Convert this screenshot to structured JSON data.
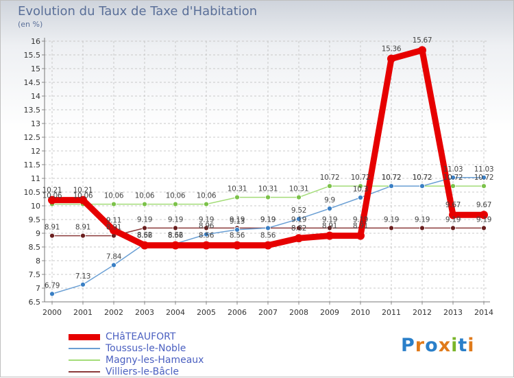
{
  "title": "Evolution du Taux de Taxe d'Habitation",
  "subtitle": "(en %)",
  "logo": {
    "text": "Proxiti",
    "letter_colors": [
      "#2a7fc9",
      "#e07a1a",
      "#2a7fc9",
      "#e07a1a",
      "#7ab52a",
      "#2a7fc9",
      "#e07a1a"
    ]
  },
  "chart_data": {
    "type": "line",
    "categories": [
      "2000",
      "2001",
      "2002",
      "2003",
      "2004",
      "2005",
      "2006",
      "2007",
      "2008",
      "2009",
      "2010",
      "2011",
      "2012",
      "2013",
      "2014"
    ],
    "ylim": [
      6.5,
      16
    ],
    "yticks": [
      "6.5",
      "7",
      "7.5",
      "8",
      "8.5",
      "9",
      "9.5",
      "10",
      "10.5",
      "11",
      "11.5",
      "12",
      "12.5",
      "13",
      "13.5",
      "14",
      "14.5",
      "15",
      "15.5",
      "16"
    ],
    "grid": true,
    "legend_position": "bottom-left",
    "series": [
      {
        "name": "CHâTEAUFORT",
        "color": "#e60000",
        "width": 9,
        "marker": "#e60000",
        "marker_r": 6,
        "label_dy": -11,
        "values": [
          10.21,
          10.21,
          9.11,
          8.56,
          8.56,
          8.56,
          8.56,
          8.56,
          8.82,
          8.91,
          8.91,
          15.36,
          15.67,
          9.67,
          9.67
        ],
        "labels": [
          "10.21",
          "10.21",
          "9.11",
          "8.56",
          "8.56",
          "8.56",
          "8.56",
          "8.56",
          "8.82",
          "8.91",
          "8.91",
          "15.36",
          "15.67",
          "9.67",
          "9.67"
        ]
      },
      {
        "name": "Toussus-le-Noble",
        "color": "#6a9fd4",
        "width": 1.5,
        "marker": "#3a7fc4",
        "marker_r": 3.5,
        "label_dy": -9,
        "values": [
          6.79,
          7.13,
          7.84,
          8.62,
          8.62,
          8.96,
          9.13,
          9.19,
          9.52,
          9.9,
          10.3,
          10.72,
          10.72,
          11.03,
          11.03
        ],
        "labels": [
          "6.79",
          "7.13",
          "7.84",
          "8.62",
          "8.62",
          "8.96",
          "9.13",
          "9.19",
          "9.52",
          "9.9",
          "10.3",
          "10.72",
          "10.72",
          "11.03",
          "11.03"
        ]
      },
      {
        "name": "Magny-les-Hameaux",
        "color": "#a3dc78",
        "width": 1.5,
        "marker": "#7cc24a",
        "marker_r": 3.5,
        "label_dy": -9,
        "values": [
          10.06,
          10.06,
          10.06,
          10.06,
          10.06,
          10.06,
          10.31,
          10.31,
          10.31,
          10.72,
          10.72,
          10.72,
          10.72,
          10.72,
          10.72
        ],
        "labels": [
          "10.06",
          "10.06",
          "10.06",
          "10.06",
          "10.06",
          "10.06",
          "10.31",
          "10.31",
          "10.31",
          "10.72",
          "10.72",
          "10.72",
          "10.72",
          "10.72",
          "10.72"
        ]
      },
      {
        "name": "Villiers-le-Bâcle",
        "color": "#8a3a3a",
        "width": 1.5,
        "marker": "#6a1f1f",
        "marker_r": 3.5,
        "label_dy": -9,
        "values": [
          8.91,
          8.91,
          8.91,
          9.19,
          9.19,
          9.19,
          9.19,
          9.19,
          9.19,
          9.19,
          9.19,
          9.19,
          9.19,
          9.19,
          9.19
        ],
        "labels": [
          "8.91",
          "8.91",
          "8.91",
          "9.19",
          "9.19",
          "9.19",
          "9.19",
          "9.19",
          "9.19",
          "9.19",
          "9.19",
          "9.19",
          "9.19",
          "9.19",
          "9.19"
        ]
      }
    ]
  }
}
